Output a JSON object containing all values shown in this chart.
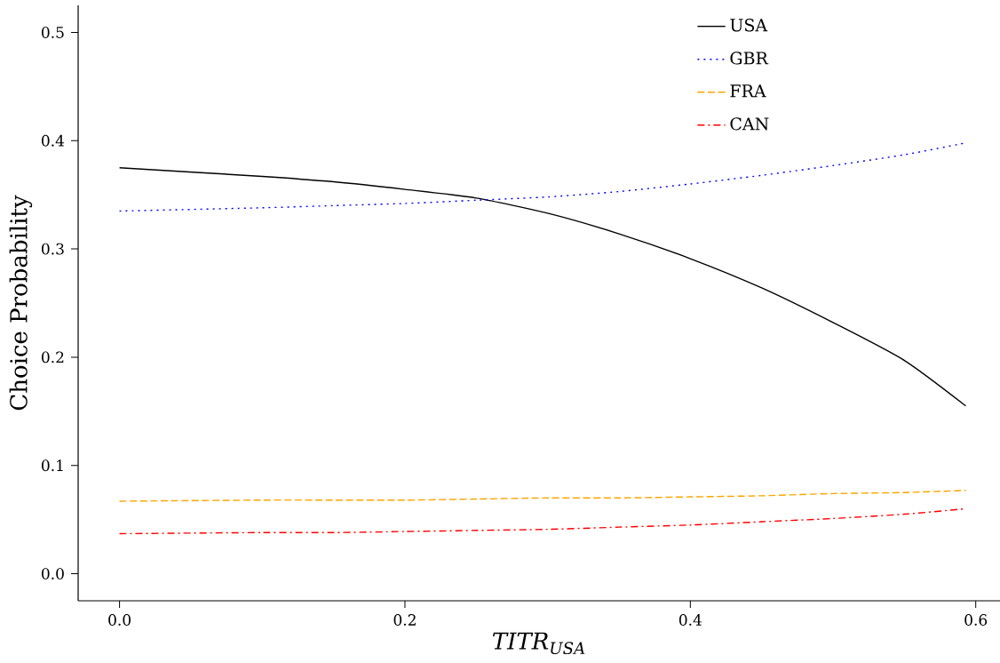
{
  "chart_data": {
    "type": "line",
    "xlabel": "TITR$_{USA}$",
    "ylabel": "Choice Probability",
    "x": [
      0,
      0.1,
      0.15,
      0.2,
      0.25,
      0.3,
      0.35,
      0.4,
      0.45,
      0.5,
      0.55,
      0.593
    ],
    "series": [
      {
        "name": "USA",
        "color": "#000000",
        "line_style": "solid",
        "values": [
          0.375,
          0.367,
          0.362,
          0.355,
          0.347,
          0.333,
          0.314,
          0.291,
          0.264,
          0.232,
          0.197,
          0.155
        ]
      },
      {
        "name": "GBR",
        "color": "#0000ff",
        "line_style": "dotted",
        "values": [
          0.335,
          0.338,
          0.34,
          0.342,
          0.345,
          0.348,
          0.353,
          0.36,
          0.368,
          0.377,
          0.387,
          0.398
        ]
      },
      {
        "name": "FRA",
        "color": "#ffa500",
        "line_style": "dashed",
        "values": [
          0.067,
          0.068,
          0.068,
          0.068,
          0.069,
          0.07,
          0.07,
          0.071,
          0.072,
          0.074,
          0.075,
          0.077
        ]
      },
      {
        "name": "CAN",
        "color": "#ff0000",
        "line_style": "dashdot",
        "values": [
          0.037,
          0.038,
          0.038,
          0.039,
          0.04,
          0.041,
          0.043,
          0.045,
          0.048,
          0.051,
          0.055,
          0.06
        ]
      }
    ],
    "xlim": [
      -0.029,
      0.617
    ],
    "ylim": [
      -0.025,
      0.525
    ],
    "xticks": [
      {
        "value": 0,
        "label": "0.0"
      },
      0.2,
      0.4,
      0.6
    ],
    "yticks": [
      {
        "value": 0,
        "label": "0.0"
      },
      0.1,
      0.2,
      0.3,
      0.4,
      0.5
    ],
    "grid": false,
    "legend": "top right",
    "marker": "none"
  }
}
